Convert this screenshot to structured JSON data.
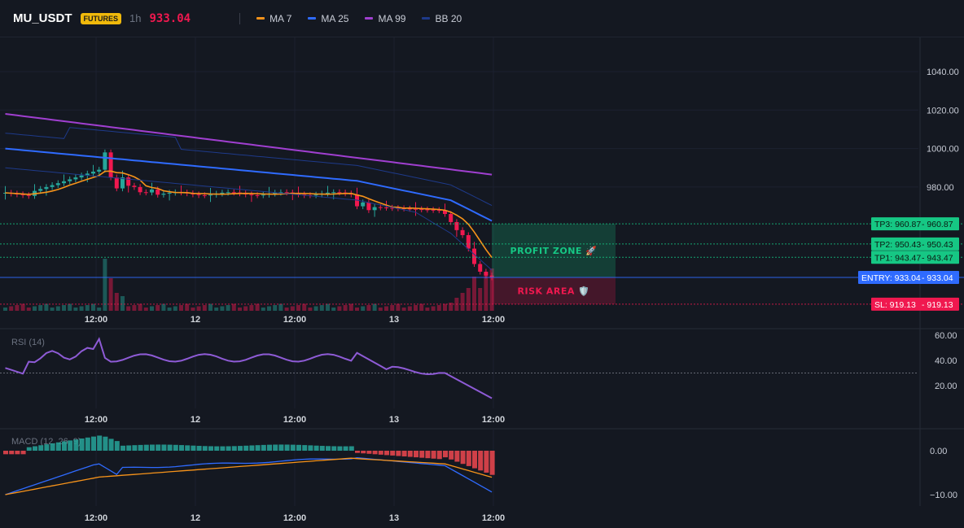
{
  "header": {
    "symbol": "MU_USDT",
    "market_badge": "FUTURES",
    "timeframe": "1h",
    "last_price": "933.04",
    "legend": [
      {
        "label": "MA 7",
        "color": "#f7931a"
      },
      {
        "label": "MA 25",
        "color": "#2f6bff"
      },
      {
        "label": "MA 99",
        "color": "#a03fd0"
      },
      {
        "label": "BB 20",
        "color": "#1e3a8a"
      }
    ]
  },
  "price_axis": {
    "ticks": [
      "1040.00",
      "1020.00",
      "1000.00",
      "980.00"
    ]
  },
  "time_axis": {
    "ticks": [
      "12:00",
      "12",
      "12:00",
      "13",
      "12:00"
    ]
  },
  "trade_levels": [
    {
      "name": "tp3",
      "label": "TP3: 960.87",
      "value_label": "960.87",
      "price": 960.87,
      "color": "#16c784"
    },
    {
      "name": "tp2",
      "label": "TP2: 950.43",
      "value_label": "950.43",
      "price": 950.43,
      "color": "#16c784"
    },
    {
      "name": "tp1",
      "label": "TP1: 943.47",
      "value_label": "943.47",
      "price": 943.47,
      "color": "#16c784"
    },
    {
      "name": "entry",
      "label": "ENTRY: 933.04",
      "value_label": "933.04",
      "price": 933.04,
      "color": "#2f6bff"
    },
    {
      "name": "sl",
      "label": "SL: 919.13",
      "value_label": "919.13",
      "price": 919.13,
      "color": "#f0184f"
    }
  ],
  "zones": {
    "profit": "PROFIT ZONE 🚀",
    "risk": "RISK AREA 🛡️"
  },
  "rsi": {
    "title": "RSI (14)",
    "ticks": [
      "60.00",
      "40.00",
      "20.00"
    ],
    "threshold": 30
  },
  "macd": {
    "title": "MACD (12, 26, 9)",
    "ticks": [
      "0.00",
      "−10.00"
    ]
  },
  "colors": {
    "up": "#26a69a",
    "down": "#f0184f",
    "profit_zone": "#16c784",
    "risk_zone": "#f0184f"
  }
}
